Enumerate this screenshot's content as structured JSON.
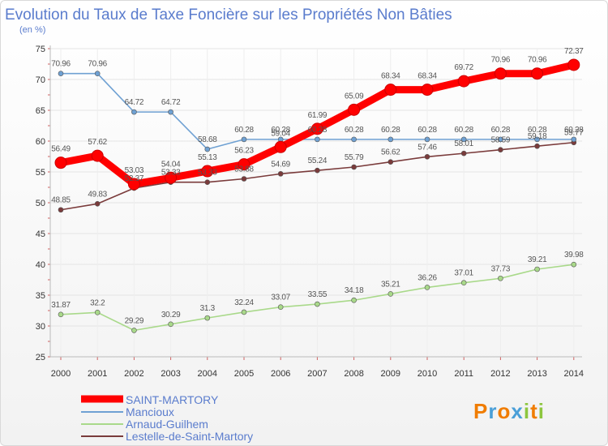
{
  "chart_data": {
    "type": "line",
    "title": "Evolution du Taux de Taxe Foncière sur les Propriétés Non Bâties",
    "subtitle": "(en %)",
    "xlabel": "",
    "ylabel": "(en %)",
    "ylim": [
      25,
      75
    ],
    "yticks": [
      25,
      30,
      35,
      40,
      45,
      50,
      55,
      60,
      65,
      70,
      75
    ],
    "grid": true,
    "categories": [
      "2000",
      "2001",
      "2002",
      "2003",
      "2004",
      "2005",
      "2006",
      "2007",
      "2008",
      "2009",
      "2010",
      "2011",
      "2012",
      "2013",
      "2014"
    ],
    "series": [
      {
        "name": "SAINT-MARTORY",
        "color": "#ff0000",
        "values": [
          56.49,
          57.62,
          53.03,
          54.04,
          55.13,
          56.23,
          59.04,
          61.99,
          65.09,
          68.34,
          68.34,
          69.72,
          70.96,
          70.96,
          72.37
        ],
        "labels": [
          "56.49",
          "57.62",
          "53.03",
          "54.04",
          "55.13",
          "56.23",
          "59.04",
          "61.99",
          "65.09",
          "68.34",
          "68.34",
          "69.72",
          "70.96",
          "70.96",
          "72.37"
        ]
      },
      {
        "name": "Mancioux",
        "color": "#6fa1d3",
        "values": [
          70.96,
          70.96,
          64.72,
          64.72,
          58.68,
          60.28,
          60.28,
          60.28,
          60.28,
          60.28,
          60.28,
          60.28,
          60.28,
          60.28,
          60.28
        ],
        "labels": [
          "70.96",
          "70.96",
          "64.72",
          "64.72",
          "58.68",
          "60.28",
          "60.28",
          "60.28",
          "60.28",
          "60.28",
          "60.28",
          "60.28",
          "60.28",
          "60.28",
          "60.28"
        ]
      },
      {
        "name": "Arnaud-Guilhem",
        "color": "#a9d98a",
        "values": [
          31.87,
          32.2,
          29.29,
          30.29,
          31.3,
          32.24,
          33.07,
          33.55,
          34.18,
          35.21,
          36.26,
          37.01,
          37.73,
          39.21,
          39.98
        ],
        "labels": [
          "31.87",
          "32.2",
          "29.29",
          "30.29",
          "31.3",
          "32.24",
          "33.07",
          "33.55",
          "34.18",
          "35.21",
          "36.26",
          "37.01",
          "37.73",
          "39.21",
          "39.98"
        ]
      },
      {
        "name": "Lestelle-de-Saint-Martory",
        "color": "#7a3b3b",
        "values": [
          48.85,
          49.83,
          52.37,
          53.33,
          53.33,
          53.88,
          54.69,
          55.24,
          55.79,
          56.62,
          57.46,
          58.01,
          58.59,
          59.18,
          59.77
        ],
        "labels": [
          "48.85",
          "49.83",
          "52.37",
          "53.33",
          "53.33",
          "53.88",
          "54.69",
          "55.24",
          "55.79",
          "56.62",
          "57.46",
          "58.01",
          "58.59",
          "59.18",
          "59.77"
        ]
      }
    ]
  },
  "legend": [
    "SAINT-MARTORY",
    "Mancioux",
    "Arnaud-Guilhem",
    "Lestelle-de-Saint-Martory"
  ],
  "logo": {
    "text": "Proxiti",
    "letters": [
      "P",
      "r",
      "o",
      "x",
      "i",
      "t",
      "i"
    ],
    "colors": [
      "#f07c00",
      "#4a9fd8",
      "#f07c00",
      "#4a9fd8",
      "#8dc63f",
      "#f07c00",
      "#8dc63f"
    ]
  }
}
